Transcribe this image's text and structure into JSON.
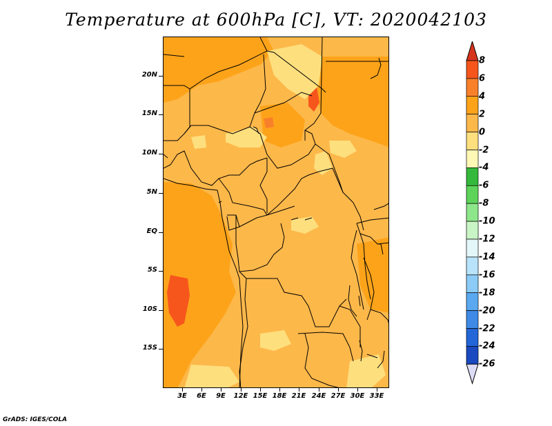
{
  "title": "Temperature at 600hPa [C], VT: 2020042103",
  "footer": "GrADS: IGES/COLA",
  "map": {
    "lat_labels": [
      "20N",
      "15N",
      "10N",
      "5N",
      "EQ",
      "5S",
      "10S",
      "15S"
    ],
    "lon_labels": [
      "3E",
      "6E",
      "9E",
      "12E",
      "15E",
      "18E",
      "21E",
      "24E",
      "27E",
      "30E",
      "33E"
    ]
  },
  "colorbar": {
    "labels": [
      "8",
      "6",
      "4",
      "2",
      "0",
      "-2",
      "-4",
      "-6",
      "-8",
      "-10",
      "-12",
      "-14",
      "-16",
      "-18",
      "-20",
      "-22",
      "-24",
      "-26"
    ],
    "colors": [
      "#e81f0d",
      "#f6561c",
      "#f9802a",
      "#fda31a",
      "#fdb84a",
      "#fedf7e",
      "#fff7b5",
      "#35b93c",
      "#5dd35a",
      "#8ee68a",
      "#c9f4c5",
      "#e3f7f8",
      "#b8e3fb",
      "#8bcbf6",
      "#5aa9f0",
      "#3e8ae6",
      "#2266d8",
      "#1a49c0",
      "#101e80"
    ],
    "arrow_top_color": "#d6341c",
    "arrow_bottom_color": "#dcdcf6"
  }
}
